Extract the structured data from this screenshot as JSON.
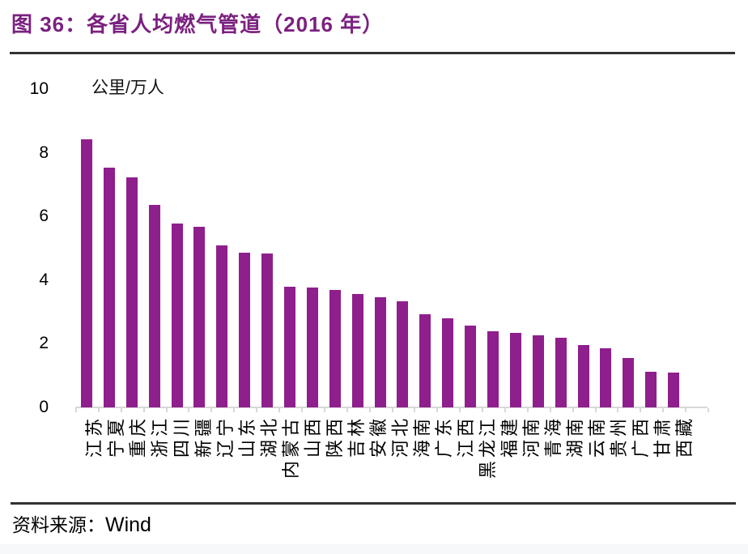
{
  "page": {
    "title": "图 36：各省人均燃气管道（2016 年）",
    "source_label": "资料来源：",
    "source_value": "Wind"
  },
  "colors": {
    "title": "#7B2180",
    "bar": "#8E1F8C",
    "rule": "#333333",
    "axis": "#D8D8D8",
    "text": "#000000",
    "footer_strip": "#F7F8FA"
  },
  "chart_data": {
    "type": "bar",
    "title": "图 36：各省人均燃气管道（2016 年）",
    "unit_label": "公里/万人",
    "xlabel": "",
    "ylabel": "公里/万人",
    "ylim": [
      0,
      10
    ],
    "yticks": [
      0,
      2,
      4,
      6,
      8,
      10
    ],
    "grid": false,
    "legend": false,
    "bar_color": "#8E1F8C",
    "categories": [
      "江苏",
      "宁夏",
      "重庆",
      "浙江",
      "四川",
      "新疆",
      "辽宁",
      "山东",
      "湖北",
      "内蒙古",
      "山西",
      "陕西",
      "吉林",
      "安徽",
      "河北",
      "海南",
      "广东",
      "江西",
      "黑龙江",
      "福建",
      "河南",
      "青海",
      "湖南",
      "云南",
      "贵州",
      "广西",
      "甘肃",
      "西藏"
    ],
    "values": [
      8.42,
      7.54,
      7.23,
      6.37,
      5.78,
      5.67,
      5.1,
      4.86,
      4.84,
      3.78,
      3.77,
      3.7,
      3.55,
      3.47,
      3.33,
      2.93,
      2.8,
      2.57,
      2.38,
      2.33,
      2.26,
      2.2,
      1.96,
      1.86,
      1.56,
      1.13,
      1.1,
      0
    ]
  }
}
